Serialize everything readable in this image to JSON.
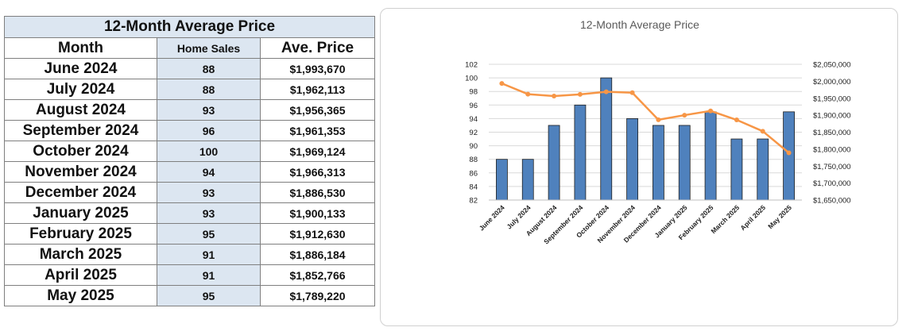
{
  "table": {
    "title": "12-Month Average Price",
    "headers": [
      "Month",
      "Home Sales",
      "Ave. Price"
    ],
    "rows": [
      [
        "June 2024",
        "88",
        "$1,993,670"
      ],
      [
        "July 2024",
        "88",
        "$1,962,113"
      ],
      [
        "August 2024",
        "93",
        "$1,956,365"
      ],
      [
        "September 2024",
        "96",
        "$1,961,353"
      ],
      [
        "October 2024",
        "100",
        "$1,969,124"
      ],
      [
        "November 2024",
        "94",
        "$1,966,313"
      ],
      [
        "December 2024",
        "93",
        "$1,886,530"
      ],
      [
        "January 2025",
        "93",
        "$1,900,133"
      ],
      [
        "February 2025",
        "95",
        "$1,912,630"
      ],
      [
        "March 2025",
        "91",
        "$1,886,184"
      ],
      [
        "April 2025",
        "91",
        "$1,852,766"
      ],
      [
        "May 2025",
        "95",
        "$1,789,220"
      ]
    ]
  },
  "chart_data": {
    "type": "bar",
    "title": "12-Month Average Price",
    "categories": [
      "June 2024",
      "July 2024",
      "August 2024",
      "September 2024",
      "October 2024",
      "November 2024",
      "December 2024",
      "January 2025",
      "February 2025",
      "March 2025",
      "April 2025",
      "May 2025"
    ],
    "series": [
      {
        "type": "bar",
        "axis": "left",
        "color": "#4f81bd",
        "values": [
          88,
          88,
          93,
          96,
          100,
          94,
          93,
          93,
          95,
          91,
          91,
          95
        ]
      },
      {
        "type": "line",
        "axis": "right",
        "color": "#f79646",
        "values": [
          1993670,
          1962113,
          1956365,
          1961353,
          1969124,
          1966313,
          1886530,
          1900133,
          1912630,
          1886184,
          1852766,
          1789220
        ]
      }
    ],
    "left_axis": {
      "ylim": [
        82,
        102
      ],
      "ticks": [
        "102",
        "100",
        "98",
        "96",
        "94",
        "92",
        "90",
        "88",
        "86",
        "84",
        "82"
      ]
    },
    "right_axis": {
      "ylim": [
        1650000,
        2050000
      ],
      "ticks": [
        "$2,050,000",
        "$2,000,000",
        "$1,950,000",
        "$1,900,000",
        "$1,850,000",
        "$1,800,000",
        "$1,750,000",
        "$1,700,000",
        "$1,650,000"
      ]
    },
    "grid": true,
    "legend": "none"
  }
}
